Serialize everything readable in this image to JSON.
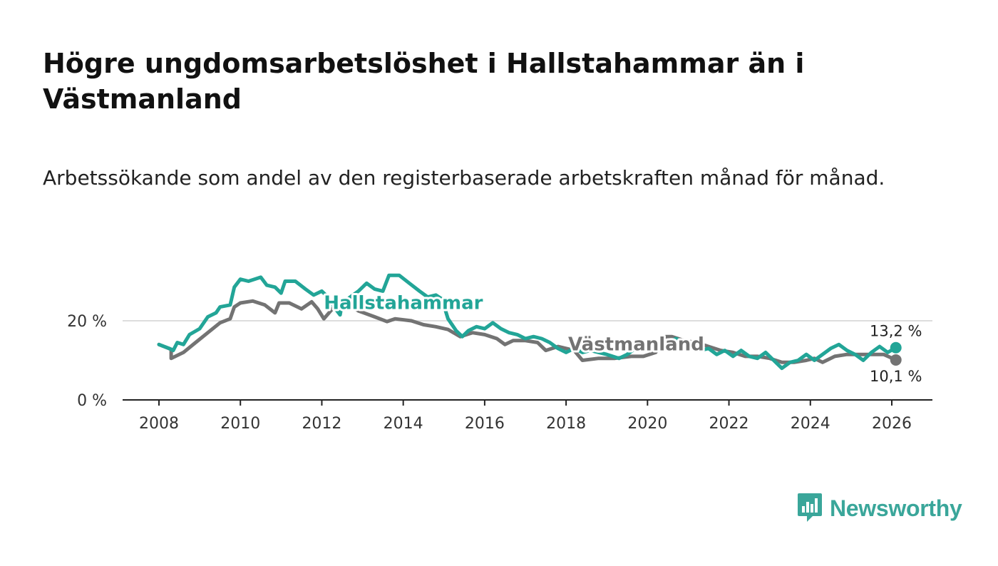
{
  "header": {
    "title": "Högre ungdomsarbetslöshet i Hallstahammar än i Västmanland",
    "subtitle": "Arbetssökande som andel av den registerbaserade arbetskraften månad för månad."
  },
  "logo": {
    "text": "Newsworthy",
    "color": "#3aa69a"
  },
  "chart_data": {
    "type": "line",
    "title": "Högre ungdomsarbetslöshet i Hallstahammar än i Västmanland",
    "subtitle": "Arbetssökande som andel av den registerbaserade arbetskraften månad för månad.",
    "xlabel": "",
    "ylabel": "",
    "xlim": [
      2007.5,
      2027.0
    ],
    "ylim": [
      0,
      35
    ],
    "x_ticks": [
      2008,
      2010,
      2012,
      2014,
      2016,
      2018,
      2020,
      2022,
      2024,
      2026
    ],
    "x_tick_labels": [
      "2008",
      "2010",
      "2012",
      "2014",
      "2016",
      "2018",
      "2020",
      "2022",
      "2024",
      "2026"
    ],
    "y_ticks": [
      0,
      20
    ],
    "y_tick_labels": [
      "0 %",
      "20 %"
    ],
    "grid": "horizontal",
    "series": [
      {
        "name": "Västmanland",
        "label": "Västmanland",
        "color": "#737373",
        "end_label": "10,1 %",
        "points": [
          [
            2008.0,
            14.0
          ],
          [
            2008.3,
            12.8
          ],
          [
            2008.3,
            10.5
          ],
          [
            2008.6,
            12.0
          ],
          [
            2008.9,
            14.5
          ],
          [
            2009.2,
            17.0
          ],
          [
            2009.5,
            19.5
          ],
          [
            2009.75,
            20.5
          ],
          [
            2009.85,
            23.5
          ],
          [
            2010.0,
            24.5
          ],
          [
            2010.3,
            25.0
          ],
          [
            2010.6,
            24.0
          ],
          [
            2010.85,
            22.0
          ],
          [
            2010.95,
            24.5
          ],
          [
            2011.2,
            24.5
          ],
          [
            2011.5,
            23.0
          ],
          [
            2011.75,
            24.8
          ],
          [
            2011.9,
            23.0
          ],
          [
            2012.05,
            20.5
          ],
          [
            2012.3,
            23.5
          ],
          [
            2012.6,
            24.5
          ],
          [
            2012.9,
            22.5
          ],
          [
            2013.3,
            21.0
          ],
          [
            2013.6,
            19.8
          ],
          [
            2013.8,
            20.5
          ],
          [
            2014.2,
            20.0
          ],
          [
            2014.5,
            19.0
          ],
          [
            2014.8,
            18.5
          ],
          [
            2015.1,
            17.8
          ],
          [
            2015.4,
            16.0
          ],
          [
            2015.7,
            17.0
          ],
          [
            2016.0,
            16.5
          ],
          [
            2016.3,
            15.5
          ],
          [
            2016.5,
            14.0
          ],
          [
            2016.7,
            15.0
          ],
          [
            2017.0,
            15.0
          ],
          [
            2017.3,
            14.5
          ],
          [
            2017.5,
            12.5
          ],
          [
            2017.8,
            13.5
          ],
          [
            2018.0,
            13.0
          ],
          [
            2018.2,
            12.5
          ],
          [
            2018.4,
            10.0
          ],
          [
            2018.8,
            10.5
          ],
          [
            2019.2,
            10.5
          ],
          [
            2019.6,
            11.0
          ],
          [
            2019.9,
            11.0
          ],
          [
            2020.2,
            12.0
          ],
          [
            2020.45,
            16.0
          ],
          [
            2020.6,
            16.0
          ],
          [
            2020.9,
            15.0
          ],
          [
            2021.2,
            14.5
          ],
          [
            2021.5,
            13.5
          ],
          [
            2021.8,
            12.5
          ],
          [
            2022.1,
            12.0
          ],
          [
            2022.4,
            11.0
          ],
          [
            2022.7,
            11.0
          ],
          [
            2023.0,
            10.5
          ],
          [
            2023.3,
            9.5
          ],
          [
            2023.6,
            9.5
          ],
          [
            2023.9,
            10.0
          ],
          [
            2024.1,
            10.5
          ],
          [
            2024.3,
            9.5
          ],
          [
            2024.6,
            11.0
          ],
          [
            2024.9,
            11.5
          ],
          [
            2025.2,
            11.5
          ],
          [
            2025.5,
            11.5
          ],
          [
            2025.8,
            11.5
          ],
          [
            2026.1,
            10.1
          ]
        ]
      },
      {
        "name": "Hallstahammar",
        "label": "Hallstahammar",
        "color": "#22a597",
        "end_label": "13,2 %",
        "points": [
          [
            2008.0,
            14.0
          ],
          [
            2008.25,
            13.0
          ],
          [
            2008.35,
            12.5
          ],
          [
            2008.45,
            14.5
          ],
          [
            2008.6,
            14.0
          ],
          [
            2008.75,
            16.5
          ],
          [
            2009.0,
            18.0
          ],
          [
            2009.2,
            21.0
          ],
          [
            2009.4,
            22.0
          ],
          [
            2009.5,
            23.5
          ],
          [
            2009.75,
            24.0
          ],
          [
            2009.85,
            28.5
          ],
          [
            2010.0,
            30.5
          ],
          [
            2010.2,
            30.0
          ],
          [
            2010.5,
            31.0
          ],
          [
            2010.65,
            29.0
          ],
          [
            2010.85,
            28.5
          ],
          [
            2011.0,
            27.0
          ],
          [
            2011.1,
            30.0
          ],
          [
            2011.35,
            30.0
          ],
          [
            2011.6,
            28.0
          ],
          [
            2011.8,
            26.5
          ],
          [
            2012.0,
            27.5
          ],
          [
            2012.15,
            26.0
          ],
          [
            2012.3,
            23.5
          ],
          [
            2012.45,
            21.5
          ],
          [
            2012.5,
            24.5
          ],
          [
            2012.7,
            26.0
          ],
          [
            2012.9,
            27.5
          ],
          [
            2013.1,
            29.5
          ],
          [
            2013.3,
            28.0
          ],
          [
            2013.5,
            27.5
          ],
          [
            2013.65,
            31.5
          ],
          [
            2013.9,
            31.5
          ],
          [
            2014.15,
            29.5
          ],
          [
            2014.4,
            27.5
          ],
          [
            2014.6,
            26.0
          ],
          [
            2014.8,
            26.5
          ],
          [
            2014.95,
            25.5
          ],
          [
            2015.1,
            20.5
          ],
          [
            2015.3,
            17.5
          ],
          [
            2015.45,
            16.0
          ],
          [
            2015.6,
            17.5
          ],
          [
            2015.8,
            18.5
          ],
          [
            2016.0,
            18.0
          ],
          [
            2016.2,
            19.5
          ],
          [
            2016.4,
            18.0
          ],
          [
            2016.6,
            17.0
          ],
          [
            2016.8,
            16.5
          ],
          [
            2017.0,
            15.5
          ],
          [
            2017.2,
            16.0
          ],
          [
            2017.4,
            15.5
          ],
          [
            2017.6,
            14.5
          ],
          [
            2017.8,
            13.0
          ],
          [
            2018.0,
            12.0
          ],
          [
            2018.2,
            13.0
          ],
          [
            2018.4,
            12.0
          ],
          [
            2018.6,
            12.5
          ],
          [
            2018.8,
            12.0
          ],
          [
            2019.0,
            11.5
          ],
          [
            2019.3,
            10.5
          ],
          [
            2019.5,
            11.5
          ],
          [
            2019.7,
            13.0
          ],
          [
            2020.0,
            14.5
          ],
          [
            2020.3,
            13.0
          ],
          [
            2020.5,
            14.5
          ],
          [
            2020.7,
            15.5
          ],
          [
            2020.9,
            14.5
          ],
          [
            2021.1,
            13.5
          ],
          [
            2021.3,
            12.5
          ],
          [
            2021.5,
            13.0
          ],
          [
            2021.7,
            11.5
          ],
          [
            2021.9,
            12.5
          ],
          [
            2022.1,
            11.0
          ],
          [
            2022.3,
            12.5
          ],
          [
            2022.5,
            11.0
          ],
          [
            2022.7,
            10.5
          ],
          [
            2022.9,
            12.0
          ],
          [
            2023.1,
            10.0
          ],
          [
            2023.3,
            8.0
          ],
          [
            2023.5,
            9.5
          ],
          [
            2023.7,
            10.0
          ],
          [
            2023.9,
            11.5
          ],
          [
            2024.1,
            10.0
          ],
          [
            2024.3,
            11.5
          ],
          [
            2024.5,
            13.0
          ],
          [
            2024.7,
            14.0
          ],
          [
            2024.9,
            12.5
          ],
          [
            2025.1,
            11.5
          ],
          [
            2025.3,
            10.0
          ],
          [
            2025.5,
            12.0
          ],
          [
            2025.7,
            13.5
          ],
          [
            2025.9,
            12.0
          ],
          [
            2026.1,
            13.2
          ]
        ]
      }
    ],
    "annotations": [
      {
        "text": "Hallstahammar",
        "series": "Hallstahammar",
        "anchor_x": 2012.05,
        "anchor_y": 23.0
      },
      {
        "text": "Västmanland",
        "series": "Västmanland",
        "anchor_x": 2018.05,
        "anchor_y": 12.5
      }
    ]
  }
}
